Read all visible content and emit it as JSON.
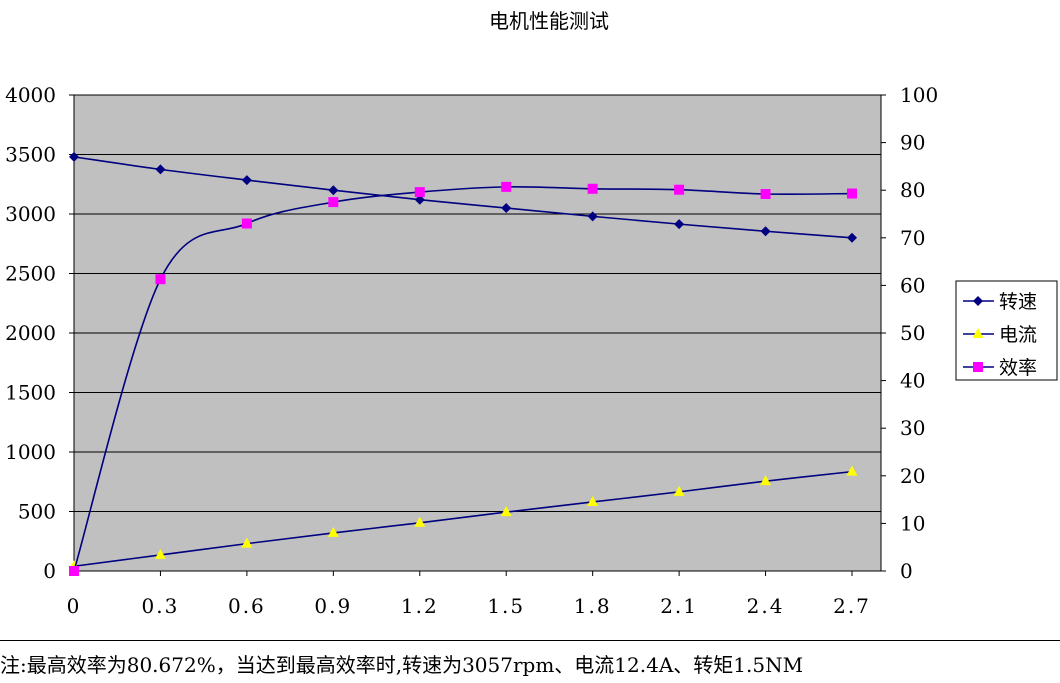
{
  "chart_data": {
    "type": "line",
    "title": "电机性能测试",
    "categories": [
      "0",
      "0.3",
      "0.6",
      "0.9",
      "1.2",
      "1.5",
      "1.8",
      "2.1",
      "2.4",
      "2.7"
    ],
    "x": [
      0,
      0.3,
      0.6,
      0.9,
      1.2,
      1.5,
      1.8,
      2.1,
      2.4,
      2.7
    ],
    "y_left": {
      "min": 0,
      "max": 4000,
      "step": 500,
      "ticks": [
        "0",
        "500",
        "1000",
        "1500",
        "2000",
        "2500",
        "3000",
        "3500",
        "4000"
      ]
    },
    "y_right": {
      "min": 0,
      "max": 100,
      "step": 10,
      "ticks": [
        "0",
        "10",
        "20",
        "30",
        "40",
        "50",
        "60",
        "70",
        "80",
        "90",
        "100"
      ]
    },
    "grid": true,
    "legend_position": "right",
    "series": [
      {
        "name": "转速",
        "axis": "left",
        "marker": "diamond",
        "color": "#000080",
        "marker_color": "#000080",
        "values": [
          3480,
          3375,
          3285,
          3200,
          3120,
          3050,
          2980,
          2915,
          2855,
          2800
        ]
      },
      {
        "name": "电流",
        "axis": "left",
        "marker": "triangle",
        "color": "#000080",
        "marker_color": "#ffff00",
        "values": [
          40,
          135,
          230,
          320,
          405,
          495,
          580,
          665,
          755,
          835
        ]
      },
      {
        "name": "效率",
        "axis": "right",
        "marker": "square",
        "color": "#000080",
        "marker_color": "#ff00ff",
        "values": [
          0,
          61.3,
          73,
          77.5,
          79.6,
          80.7,
          80.3,
          80.1,
          79.2,
          79.3
        ]
      }
    ],
    "plot_background": "#c0c0c0"
  },
  "note": "注:最高效率为80.672%，当达到最高效率时,转速为3057rpm、电流12.4A、转矩1.5NM"
}
